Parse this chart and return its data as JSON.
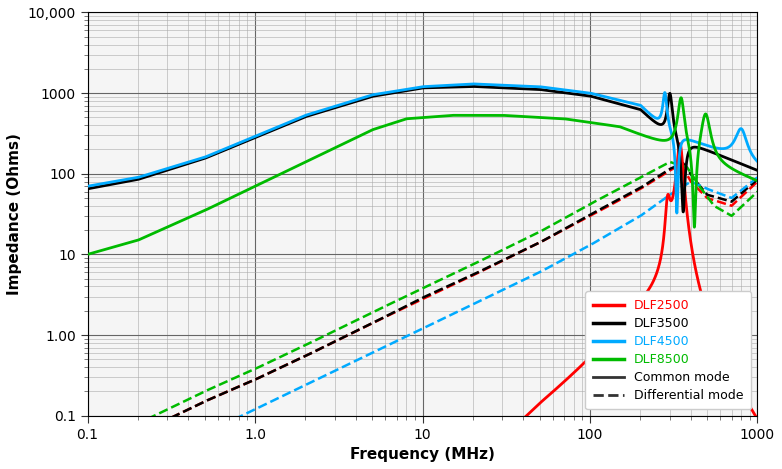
{
  "title": "",
  "xlabel": "Frequency (MHz)",
  "ylabel": "Impedance (Ohms)",
  "xlim": [
    0.1,
    1000
  ],
  "ylim": [
    0.1,
    10000
  ],
  "colors": {
    "DLF2500": "#ff0000",
    "DLF3500": "#000000",
    "DLF4500": "#00aaff",
    "DLF8500": "#00bb00"
  },
  "legend_labels": [
    "DLF2500",
    "DLF3500",
    "DLF4500",
    "DLF8500"
  ],
  "legend_colors": [
    "#ff0000",
    "#000000",
    "#00aaff",
    "#00bb00"
  ],
  "background_color": "#f5f5f5",
  "grid_major_color": "#888888",
  "grid_minor_color": "#cccccc"
}
